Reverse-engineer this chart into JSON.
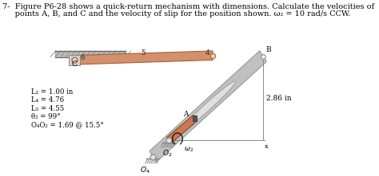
{
  "title_line1": "7-  Figure P6-28 shows a quick-return mechanism with dimensions. Calculate the velocities of",
  "title_line2": "     points A, B, and C and the velocity of slip for the position shown. ω₂ = 10 rad/s CCW.",
  "params": [
    "L₂ = 1.00 in",
    "L₄ = 4.76",
    "L₅ = 4.55",
    "θ₂ = 99°",
    "O₄O₂ = 1.69 @ 15.5°"
  ],
  "label_2p86": "2.86 in",
  "bg_color": "#ffffff",
  "link_color": "#d4906a",
  "gray_color": "#c0c0c0",
  "gray_dark": "#999999",
  "hatch_color": "#aaaaaa",
  "wall_color": "#bbbbbb",
  "text_color": "#000000",
  "slot_color": "#e0e0e0",
  "crank_color": "#cc7755",
  "crank_edge": "#884422"
}
